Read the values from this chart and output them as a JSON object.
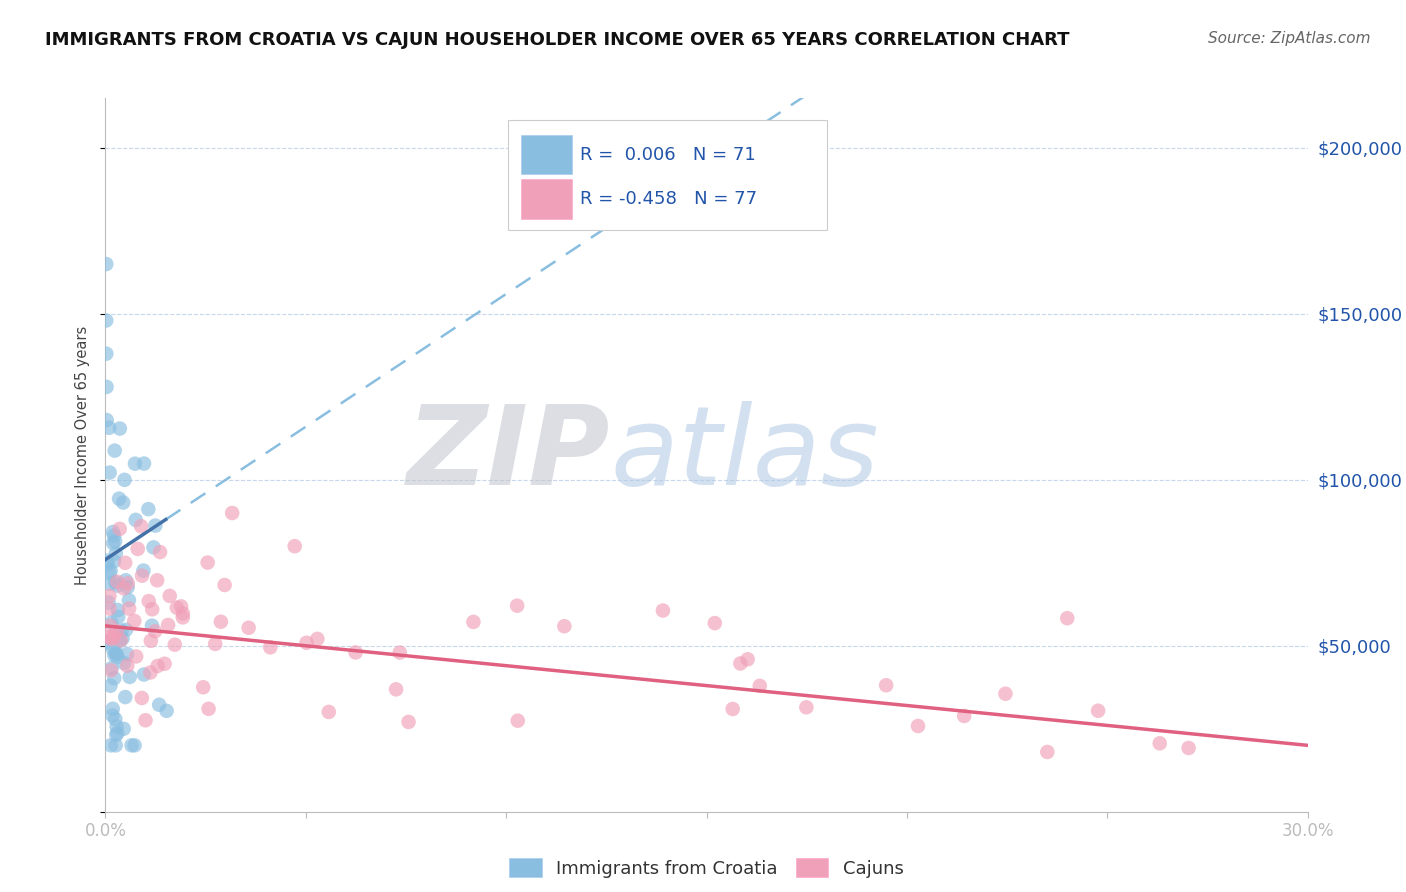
{
  "title": "IMMIGRANTS FROM CROATIA VS CAJUN HOUSEHOLDER INCOME OVER 65 YEARS CORRELATION CHART",
  "source_text": "Source: ZipAtlas.com",
  "ylabel": "Householder Income Over 65 years",
  "xmin": 0.0,
  "xmax": 0.3,
  "ymin": 0,
  "ymax": 215000,
  "color_blue": "#89BEE0",
  "color_pink": "#F0A0B8",
  "color_blue_line": "#4472A8",
  "color_pink_line": "#E06080",
  "color_dashed": "#89BEE0",
  "watermark_zip": "ZIP",
  "watermark_atlas": "atlas",
  "watermark_color_zip": "#C8C8D0",
  "watermark_color_atlas": "#B8CCE4"
}
